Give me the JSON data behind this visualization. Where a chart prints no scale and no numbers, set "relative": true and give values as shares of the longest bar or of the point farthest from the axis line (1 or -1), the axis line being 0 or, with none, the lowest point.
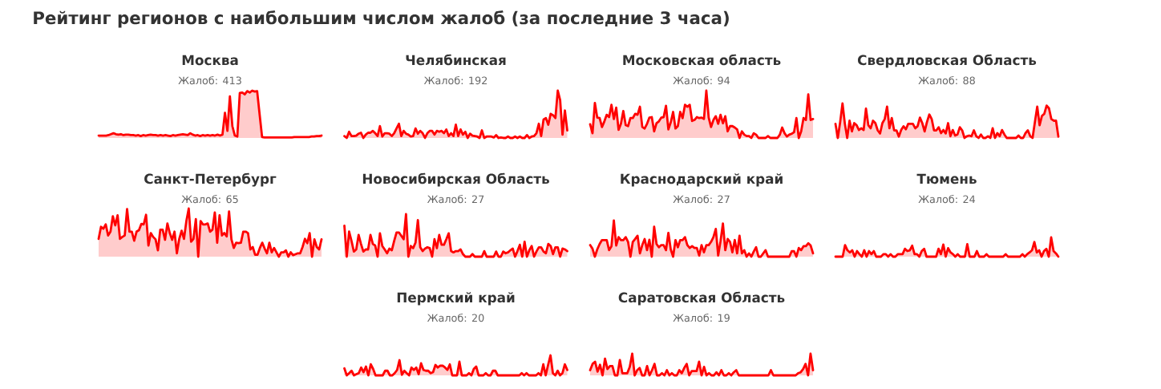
{
  "chart_data": [
    {
      "type": "other",
      "title": "Рейтинг регионов с наибольшим числом жалоб (за последние 3 часа)"
    },
    {
      "type": "area",
      "title": "Москва",
      "subtitle": "Жалоб: 413",
      "relative": true,
      "color": "#ff0000",
      "categories": [
        null,
        null,
        null,
        null,
        null,
        null,
        null,
        null,
        null,
        null,
        null,
        null,
        null,
        null,
        null,
        null,
        null,
        null,
        null,
        null,
        null,
        null,
        null,
        null,
        null,
        null,
        null,
        null,
        null,
        null,
        null,
        null,
        null,
        null,
        null,
        null,
        null,
        null,
        null,
        null,
        null,
        null,
        null,
        null,
        null,
        null,
        null,
        null,
        null,
        null,
        null,
        null,
        null,
        null,
        null,
        null,
        null,
        null,
        null,
        null,
        null,
        null,
        null,
        null,
        null,
        null,
        null,
        null,
        null,
        null,
        null,
        null,
        null,
        null,
        null,
        null,
        null,
        null,
        null,
        null,
        null,
        null,
        null,
        null,
        null,
        null,
        null,
        null,
        null,
        null,
        null
      ],
      "values": [
        0.05,
        0.05,
        0.05,
        0.05,
        0.06,
        0.08,
        0.1,
        0.08,
        0.07,
        0.08,
        0.06,
        0.07,
        0.07,
        0.06,
        0.06,
        0.05,
        0.06,
        0.04,
        0.06,
        0.05,
        0.06,
        0.07,
        0.06,
        0.06,
        0.05,
        0.06,
        0.05,
        0.06,
        0.05,
        0.04,
        0.06,
        0.05,
        0.06,
        0.07,
        0.08,
        0.07,
        0.06,
        0.1,
        0.07,
        0.05,
        0.06,
        0.04,
        0.06,
        0.05,
        0.06,
        0.05,
        0.06,
        0.05,
        0.07,
        0.05,
        0.07,
        0.53,
        0.15,
        0.88,
        0.25,
        0.05,
        0.03,
        0.95,
        0.96,
        0.92,
        0.99,
        0.96,
        1.0,
        0.98,
        0.99,
        0.5,
        0.02,
        0.01,
        0.01,
        0.01,
        0.01,
        0.01,
        0.01,
        0.01,
        0.01,
        0.01,
        0.01,
        0.01,
        0.01,
        0.02,
        0.02,
        0.02,
        0.02,
        0.02,
        0.02,
        0.02,
        0.03,
        0.03,
        0.04,
        0.04,
        0.05
      ]
    },
    {
      "type": "area",
      "title": "Челябинская",
      "subtitle": "Жалоб: 192",
      "relative": true,
      "color": "#ff0000",
      "categories": [
        null,
        null,
        null,
        null,
        null,
        null,
        null,
        null,
        null,
        null,
        null,
        null,
        null,
        null,
        null,
        null,
        null,
        null,
        null,
        null,
        null,
        null,
        null,
        null,
        null,
        null,
        null,
        null,
        null,
        null,
        null,
        null,
        null,
        null,
        null,
        null,
        null,
        null,
        null,
        null,
        null,
        null,
        null,
        null,
        null,
        null,
        null,
        null,
        null,
        null,
        null,
        null,
        null,
        null,
        null,
        null,
        null,
        null,
        null,
        null,
        null,
        null,
        null,
        null,
        null,
        null,
        null,
        null,
        null,
        null,
        null,
        null,
        null,
        null,
        null,
        null,
        null,
        null,
        null,
        null,
        null,
        null,
        null,
        null,
        null,
        null,
        null,
        null,
        null,
        null,
        null,
        null,
        null,
        null,
        null
      ],
      "values": [
        0.04,
        0,
        0.13,
        0.04,
        0.04,
        0.05,
        0.09,
        0.11,
        0,
        0.07,
        0.11,
        0.11,
        0.15,
        0.1,
        0.04,
        0.25,
        0.03,
        0.1,
        0.1,
        0.09,
        0.04,
        0.1,
        0.2,
        0.3,
        0.04,
        0.15,
        0.09,
        0.07,
        0.03,
        0.04,
        0.2,
        0.09,
        0.15,
        0.1,
        0,
        0.1,
        0.15,
        0.15,
        0.07,
        0.15,
        0.13,
        0.15,
        0.1,
        0.18,
        0.04,
        0.1,
        0.04,
        0.28,
        0.04,
        0.18,
        0.07,
        0.13,
        0,
        0.09,
        0.05,
        0.04,
        0.03,
        0,
        0.16,
        0,
        0.03,
        0.03,
        0.03,
        0.01,
        0.06,
        0,
        0.01,
        0,
        0,
        0.03,
        0,
        0,
        0.03,
        0,
        0.03,
        0,
        0,
        0.06,
        0,
        0.03,
        0.04,
        0.1,
        0.3,
        0.04,
        0.39,
        0.42,
        0.28,
        0.51,
        0.48,
        0.42,
        1.0,
        0.8,
        0.07,
        0.58,
        0.16
      ]
    },
    {
      "type": "area",
      "title": "Московская область",
      "subtitle": "Жалоб: 94",
      "relative": true,
      "color": "#ff0000",
      "categories": [
        null,
        null,
        null,
        null,
        null,
        null,
        null,
        null,
        null,
        null,
        null,
        null,
        null,
        null,
        null,
        null,
        null,
        null,
        null,
        null,
        null,
        null,
        null,
        null,
        null,
        null,
        null,
        null,
        null,
        null,
        null,
        null,
        null,
        null,
        null,
        null,
        null,
        null,
        null,
        null,
        null,
        null,
        null,
        null,
        null,
        null,
        null,
        null,
        null,
        null,
        null,
        null,
        null,
        null,
        null,
        null,
        null,
        null,
        null,
        null,
        null,
        null,
        null,
        null,
        null,
        null,
        null,
        null,
        null,
        null,
        null,
        null,
        null,
        null,
        null,
        null,
        null,
        null,
        null,
        null,
        null,
        null,
        null,
        null,
        null,
        null,
        null,
        null,
        null,
        null,
        null,
        null,
        null,
        null,
        null
      ],
      "values": [
        0.29,
        0.1,
        0.74,
        0.43,
        0.42,
        0.23,
        0.35,
        0.49,
        0.44,
        0.7,
        0.4,
        0.64,
        0.17,
        0.3,
        0.57,
        0.27,
        0.25,
        0.42,
        0.42,
        0.51,
        0.49,
        0.66,
        0.23,
        0.2,
        0.3,
        0.43,
        0.44,
        0.14,
        0.31,
        0.35,
        0.43,
        0.44,
        0.68,
        0.18,
        0.33,
        0.55,
        0.2,
        0.25,
        0.55,
        0.42,
        0.7,
        0.66,
        0.7,
        0.36,
        0.38,
        0.44,
        0.42,
        0.43,
        0.4,
        1.0,
        0.43,
        0.23,
        0.38,
        0.46,
        0.3,
        0.49,
        0.31,
        0.46,
        0.14,
        0.25,
        0.25,
        0.22,
        0.18,
        0,
        0.14,
        0.07,
        0.04,
        0.04,
        0,
        0.1,
        0.07,
        0,
        0,
        0,
        0,
        0.04,
        0,
        0,
        0,
        0,
        0.07,
        0.22,
        0.1,
        0.03,
        0.07,
        0.09,
        0.12,
        0.42,
        0,
        0.14,
        0.42,
        0.38,
        0.92,
        0.38,
        0.4
      ]
    },
    {
      "type": "area",
      "title": "Свердловская Область",
      "subtitle": "Жалоб: 88",
      "relative": true,
      "color": "#ff0000",
      "categories": [
        null,
        null,
        null,
        null,
        null,
        null,
        null,
        null,
        null,
        null,
        null,
        null,
        null,
        null,
        null,
        null,
        null,
        null,
        null,
        null,
        null,
        null,
        null,
        null,
        null,
        null,
        null,
        null,
        null,
        null,
        null,
        null,
        null,
        null,
        null,
        null,
        null,
        null,
        null,
        null,
        null,
        null,
        null,
        null,
        null,
        null,
        null,
        null,
        null,
        null,
        null,
        null,
        null,
        null,
        null,
        null,
        null,
        null,
        null,
        null,
        null,
        null,
        null,
        null,
        null,
        null,
        null,
        null,
        null,
        null,
        null,
        null,
        null,
        null,
        null,
        null,
        null,
        null,
        null,
        null,
        null,
        null,
        null,
        null,
        null,
        null,
        null,
        null,
        null,
        null,
        null,
        null,
        null,
        null,
        null,
        null
      ],
      "values": [
        0.41,
        0,
        0.46,
        1.0,
        0.41,
        0,
        0.5,
        0.19,
        0.43,
        0.37,
        0.23,
        0.28,
        0.23,
        0.85,
        0.37,
        0.28,
        0.5,
        0.43,
        0.22,
        0.13,
        0.43,
        0.55,
        0.91,
        0.28,
        0.58,
        0.22,
        0.22,
        0.04,
        0.23,
        0.34,
        0.25,
        0.41,
        0.41,
        0.41,
        0.28,
        0.34,
        0.59,
        0.43,
        0.19,
        0.46,
        0.68,
        0.55,
        0.22,
        0.22,
        0.31,
        0.14,
        0.23,
        0.13,
        0.43,
        0.05,
        0.23,
        0.07,
        0.1,
        0.31,
        0.22,
        0,
        0.05,
        0.07,
        0.05,
        0.22,
        0.05,
        0,
        0.1,
        0,
        0,
        0.05,
        0,
        0.28,
        0,
        0.14,
        0.05,
        0.23,
        0.1,
        0,
        0,
        0,
        0,
        0,
        0.07,
        0,
        0,
        0.14,
        0.22,
        0.05,
        0,
        0.46,
        0.91,
        0.37,
        0.64,
        0.7,
        0.94,
        0.86,
        0.55,
        0.5,
        0.5,
        0.04
      ]
    },
    {
      "type": "area",
      "title": "Санкт-Петербург",
      "subtitle": "Жалоб: 65",
      "relative": true,
      "color": "#ff0000",
      "categories": [
        null,
        null,
        null,
        null,
        null,
        null,
        null,
        null,
        null,
        null,
        null,
        null,
        null,
        null,
        null,
        null,
        null,
        null,
        null,
        null,
        null,
        null,
        null,
        null,
        null,
        null,
        null,
        null,
        null,
        null,
        null,
        null,
        null,
        null,
        null,
        null,
        null,
        null,
        null,
        null,
        null,
        null,
        null,
        null,
        null,
        null,
        null,
        null,
        null,
        null,
        null,
        null,
        null,
        null,
        null,
        null,
        null,
        null,
        null,
        null,
        null,
        null,
        null,
        null,
        null,
        null,
        null,
        null,
        null,
        null,
        null,
        null,
        null,
        null,
        null,
        null,
        null,
        null,
        null,
        null,
        null,
        null,
        null,
        null,
        null,
        null,
        null,
        null,
        null,
        null,
        null,
        null,
        null,
        null,
        null
      ],
      "values": [
        0.37,
        0.62,
        0.58,
        0.67,
        0.44,
        0.52,
        0.84,
        0.65,
        0.86,
        0.37,
        0.41,
        0.44,
        0.99,
        0.52,
        0.52,
        0.33,
        0.52,
        0.55,
        0.68,
        0.67,
        0.87,
        0.23,
        0.49,
        0.41,
        0.36,
        0.13,
        0.56,
        0.56,
        0.35,
        0.69,
        0.49,
        0.35,
        0.52,
        0.07,
        0.37,
        0.54,
        0.37,
        0.74,
        1.0,
        0.31,
        0.37,
        0.78,
        0,
        0.74,
        0.67,
        0.67,
        0.69,
        0.52,
        0.56,
        0.92,
        0.29,
        0.86,
        0.44,
        0.49,
        0.42,
        0.94,
        0.36,
        0.18,
        0.29,
        0.28,
        0.29,
        0.52,
        0.52,
        0.49,
        0.15,
        0.2,
        0.04,
        0.04,
        0.18,
        0.29,
        0.17,
        0.07,
        0.29,
        0.09,
        0.18,
        0.09,
        0,
        0.09,
        0.09,
        0.13,
        0,
        0.09,
        0.03,
        0.05,
        0.07,
        0.07,
        0.2,
        0.37,
        0.28,
        0.49,
        0,
        0.36,
        0.2,
        0.15,
        0.36
      ]
    },
    {
      "type": "area",
      "title": "Новосибирская Область",
      "subtitle": "Жалоб: 27",
      "relative": true,
      "color": "#ff0000",
      "categories": [
        null,
        null,
        null,
        null,
        null,
        null,
        null,
        null,
        null,
        null,
        null,
        null,
        null,
        null,
        null,
        null,
        null,
        null,
        null,
        null,
        null,
        null,
        null,
        null,
        null,
        null,
        null,
        null,
        null,
        null,
        null,
        null,
        null,
        null,
        null,
        null,
        null,
        null,
        null,
        null,
        null,
        null,
        null,
        null,
        null,
        null,
        null,
        null,
        null,
        null,
        null,
        null,
        null,
        null,
        null,
        null,
        null,
        null,
        null,
        null,
        null,
        null,
        null,
        null,
        null,
        null,
        null,
        null,
        null,
        null,
        null,
        null,
        null,
        null,
        null,
        null,
        null,
        null,
        null,
        null,
        null,
        null,
        null,
        null,
        null,
        null,
        null,
        null,
        null,
        null,
        null,
        null,
        null,
        null,
        null
      ],
      "values": [
        0.73,
        0,
        0.59,
        0.37,
        0.12,
        0.17,
        0.51,
        0.3,
        0.12,
        0.17,
        0.17,
        0.51,
        0.3,
        0.26,
        0,
        0.55,
        0.25,
        0.17,
        0.08,
        0.19,
        0.15,
        0.37,
        0.57,
        0.57,
        0.49,
        0.41,
        1.0,
        0,
        0.25,
        0.2,
        0.33,
        0.86,
        0.22,
        0.13,
        0.19,
        0.22,
        0.2,
        0,
        0.41,
        0.2,
        0.51,
        0.28,
        0.28,
        0.41,
        0.55,
        0.13,
        0.1,
        0.13,
        0.13,
        0.17,
        0.06,
        0,
        0,
        0,
        0.06,
        0,
        0,
        0,
        0,
        0.13,
        0,
        0,
        0,
        0,
        0.12,
        0,
        0,
        0.12,
        0.08,
        0.1,
        0.15,
        0.19,
        0,
        0.13,
        0.28,
        0,
        0.35,
        0,
        0.15,
        0.25,
        0,
        0.12,
        0.22,
        0.22,
        0.12,
        0.08,
        0.3,
        0.25,
        0.06,
        0.22,
        0.22,
        0,
        0.19,
        0.17,
        0.13
      ]
    },
    {
      "type": "area",
      "title": "Краснодарский край",
      "subtitle": "Жалоб: 27",
      "relative": true,
      "color": "#ff0000",
      "categories": [
        null,
        null,
        null,
        null,
        null,
        null,
        null,
        null,
        null,
        null,
        null,
        null,
        null,
        null,
        null,
        null,
        null,
        null,
        null,
        null,
        null,
        null,
        null,
        null,
        null,
        null,
        null,
        null,
        null,
        null,
        null,
        null,
        null,
        null,
        null,
        null,
        null,
        null,
        null,
        null,
        null,
        null,
        null,
        null,
        null,
        null,
        null,
        null,
        null,
        null,
        null,
        null,
        null,
        null,
        null,
        null,
        null,
        null,
        null,
        null,
        null,
        null,
        null,
        null,
        null,
        null,
        null,
        null,
        null,
        null,
        null,
        null,
        null,
        null,
        null,
        null,
        null,
        null,
        null,
        null,
        null,
        null,
        null,
        null,
        null,
        null,
        null,
        null,
        null,
        null,
        null,
        null,
        null,
        null,
        null
      ],
      "values": [
        0.32,
        0.22,
        0,
        0.2,
        0.35,
        0.46,
        0.46,
        0.46,
        0.18,
        0.29,
        1.0,
        0.31,
        0.54,
        0.46,
        0.46,
        0.54,
        0.41,
        0,
        0.41,
        0.49,
        0.58,
        0.09,
        0.32,
        0.49,
        0.18,
        0.47,
        0,
        0.83,
        0.35,
        0.26,
        0.32,
        0.32,
        0.18,
        0.66,
        0.2,
        0,
        0.46,
        0.26,
        0.46,
        0.46,
        0.54,
        0.32,
        0.24,
        0.29,
        0.24,
        0.24,
        0.03,
        0.32,
        0.12,
        0.32,
        0.32,
        0.41,
        0.54,
        0.77,
        0.03,
        0.43,
        0.92,
        0.18,
        0.49,
        0.41,
        0.12,
        0.46,
        0.09,
        0.58,
        0.09,
        0.18,
        0,
        0.09,
        0,
        0.14,
        0.26,
        0,
        0,
        0.09,
        0.18,
        0,
        0,
        0,
        0,
        0,
        0,
        0,
        0,
        0,
        0,
        0.15,
        0.15,
        0,
        0.24,
        0.18,
        0.29,
        0.29,
        0.37,
        0.31,
        0.09
      ]
    },
    {
      "type": "area",
      "title": "Тюмень",
      "subtitle": "Жалоб: 24",
      "relative": true,
      "color": "#ff0000",
      "categories": [
        null,
        null,
        null,
        null,
        null,
        null,
        null,
        null,
        null,
        null,
        null,
        null,
        null,
        null,
        null,
        null,
        null,
        null,
        null,
        null,
        null,
        null,
        null,
        null,
        null,
        null,
        null,
        null,
        null,
        null,
        null,
        null,
        null,
        null,
        null,
        null,
        null,
        null,
        null,
        null,
        null,
        null,
        null,
        null,
        null,
        null,
        null,
        null,
        null,
        null,
        null,
        null,
        null,
        null,
        null,
        null,
        null,
        null,
        null,
        null,
        null,
        null,
        null,
        null,
        null,
        null,
        null,
        null,
        null,
        null,
        null,
        null,
        null,
        null,
        null,
        null,
        null,
        null,
        null,
        null,
        null,
        null,
        null,
        null,
        null,
        null,
        null,
        null,
        null,
        null,
        null,
        null,
        null,
        null
      ],
      "values": [
        0,
        0,
        0,
        0,
        0.6,
        0.33,
        0.22,
        0.33,
        0,
        0.29,
        0.13,
        0,
        0.33,
        0,
        0.29,
        0.13,
        0.29,
        0,
        0,
        0,
        0.13,
        0.13,
        0,
        0.13,
        0,
        0,
        0.13,
        0.13,
        0.13,
        0.41,
        0.29,
        0.33,
        0.57,
        0.13,
        0.13,
        0,
        0.29,
        0.41,
        0,
        0,
        0,
        0,
        0,
        0.41,
        0.13,
        0.63,
        0,
        0.44,
        0.22,
        0.13,
        0,
        0.13,
        0,
        0,
        0,
        0.65,
        0,
        0,
        0,
        0.29,
        0,
        0,
        0,
        0.13,
        0,
        0,
        0,
        0,
        0,
        0,
        0,
        0.13,
        0,
        0,
        0,
        0,
        0,
        0,
        0.13,
        0,
        0.13,
        0.22,
        0.33,
        0.76,
        0.22,
        0.33,
        0,
        0.29,
        0.41,
        0,
        1.0,
        0.29,
        0.17,
        0
      ]
    },
    {
      "type": "area",
      "title": "Пермский край",
      "subtitle": "Жалоб: 20",
      "relative": true,
      "color": "#ff0000",
      "categories": [
        null,
        null,
        null,
        null,
        null,
        null,
        null,
        null,
        null,
        null,
        null,
        null,
        null,
        null,
        null,
        null,
        null,
        null,
        null,
        null,
        null,
        null,
        null,
        null,
        null,
        null,
        null,
        null,
        null,
        null,
        null,
        null,
        null,
        null,
        null,
        null,
        null,
        null,
        null,
        null,
        null,
        null,
        null,
        null,
        null,
        null,
        null,
        null,
        null,
        null,
        null,
        null,
        null,
        null,
        null,
        null,
        null,
        null,
        null,
        null,
        null,
        null,
        null,
        null,
        null,
        null,
        null,
        null,
        null,
        null,
        null,
        null,
        null,
        null,
        null,
        null,
        null,
        null,
        null,
        null,
        null,
        null,
        null,
        null,
        null,
        null,
        null,
        null,
        null,
        null,
        null,
        null,
        null,
        null
      ],
      "values": [
        0.35,
        0,
        0.11,
        0.23,
        0,
        0.06,
        0.11,
        0.39,
        0.16,
        0.44,
        0,
        0.55,
        0.32,
        0,
        0,
        0,
        0,
        0.23,
        0.23,
        0,
        0,
        0.11,
        0.27,
        0.76,
        0.03,
        0.23,
        0.11,
        0,
        0.39,
        0.27,
        0.39,
        0.06,
        0.6,
        0.27,
        0.23,
        0.23,
        0.11,
        0.16,
        0.52,
        0.39,
        0.48,
        0.48,
        0.39,
        0.27,
        0.55,
        0,
        0,
        0,
        0.68,
        0,
        0,
        0,
        0.11,
        0,
        0.32,
        0.44,
        0,
        0,
        0,
        0.11,
        0,
        0,
        0.23,
        0.23,
        0,
        0,
        0,
        0,
        0,
        0,
        0,
        0,
        0,
        0,
        0.11,
        0,
        0.11,
        0,
        0,
        0,
        0,
        0.11,
        0,
        0.55,
        0,
        0.52,
        1.0,
        0.11,
        0,
        0.23,
        0,
        0.11,
        0.55,
        0.27
      ]
    },
    {
      "type": "area",
      "title": "Саратовская Область",
      "subtitle": "Жалоб: 19",
      "relative": true,
      "color": "#ff0000",
      "categories": [
        null,
        null,
        null,
        null,
        null,
        null,
        null,
        null,
        null,
        null,
        null,
        null,
        null,
        null,
        null,
        null,
        null,
        null,
        null,
        null,
        null,
        null,
        null,
        null,
        null,
        null,
        null,
        null,
        null,
        null,
        null,
        null,
        null,
        null,
        null,
        null,
        null,
        null,
        null,
        null,
        null,
        null,
        null,
        null,
        null,
        null,
        null,
        null,
        null,
        null,
        null,
        null,
        null,
        null,
        null,
        null,
        null,
        null,
        null,
        null,
        null,
        null,
        null,
        null,
        null,
        null,
        null,
        null,
        null,
        null,
        null,
        null,
        null,
        null,
        null,
        null,
        null,
        null,
        null,
        null,
        null,
        null,
        null,
        null,
        null,
        null,
        null,
        null,
        null,
        null,
        null
      ],
      "values": [
        0.24,
        0.53,
        0.63,
        0.17,
        0.49,
        0,
        0.77,
        0.29,
        0.43,
        0.43,
        0,
        0,
        0.71,
        0.1,
        0.1,
        0.1,
        0.39,
        1.0,
        0,
        0.24,
        0.34,
        0,
        0,
        0.43,
        0,
        0.24,
        0.53,
        0,
        0,
        0.1,
        0,
        0.24,
        0,
        0.1,
        0,
        0,
        0.24,
        0.1,
        0.34,
        0.53,
        0,
        0.2,
        0.2,
        0.2,
        0.63,
        0,
        0.39,
        0,
        0.1,
        0,
        0,
        0.14,
        0,
        0.24,
        0,
        0,
        0.1,
        0,
        0.14,
        0.24,
        0,
        0,
        0,
        0,
        0,
        0,
        0,
        0,
        0,
        0,
        0,
        0,
        0,
        0.24,
        0,
        0,
        0,
        0,
        0,
        0,
        0,
        0,
        0,
        0,
        0.1,
        0.14,
        0.29,
        0.53,
        0,
        1.0,
        0.24
      ]
    }
  ]
}
